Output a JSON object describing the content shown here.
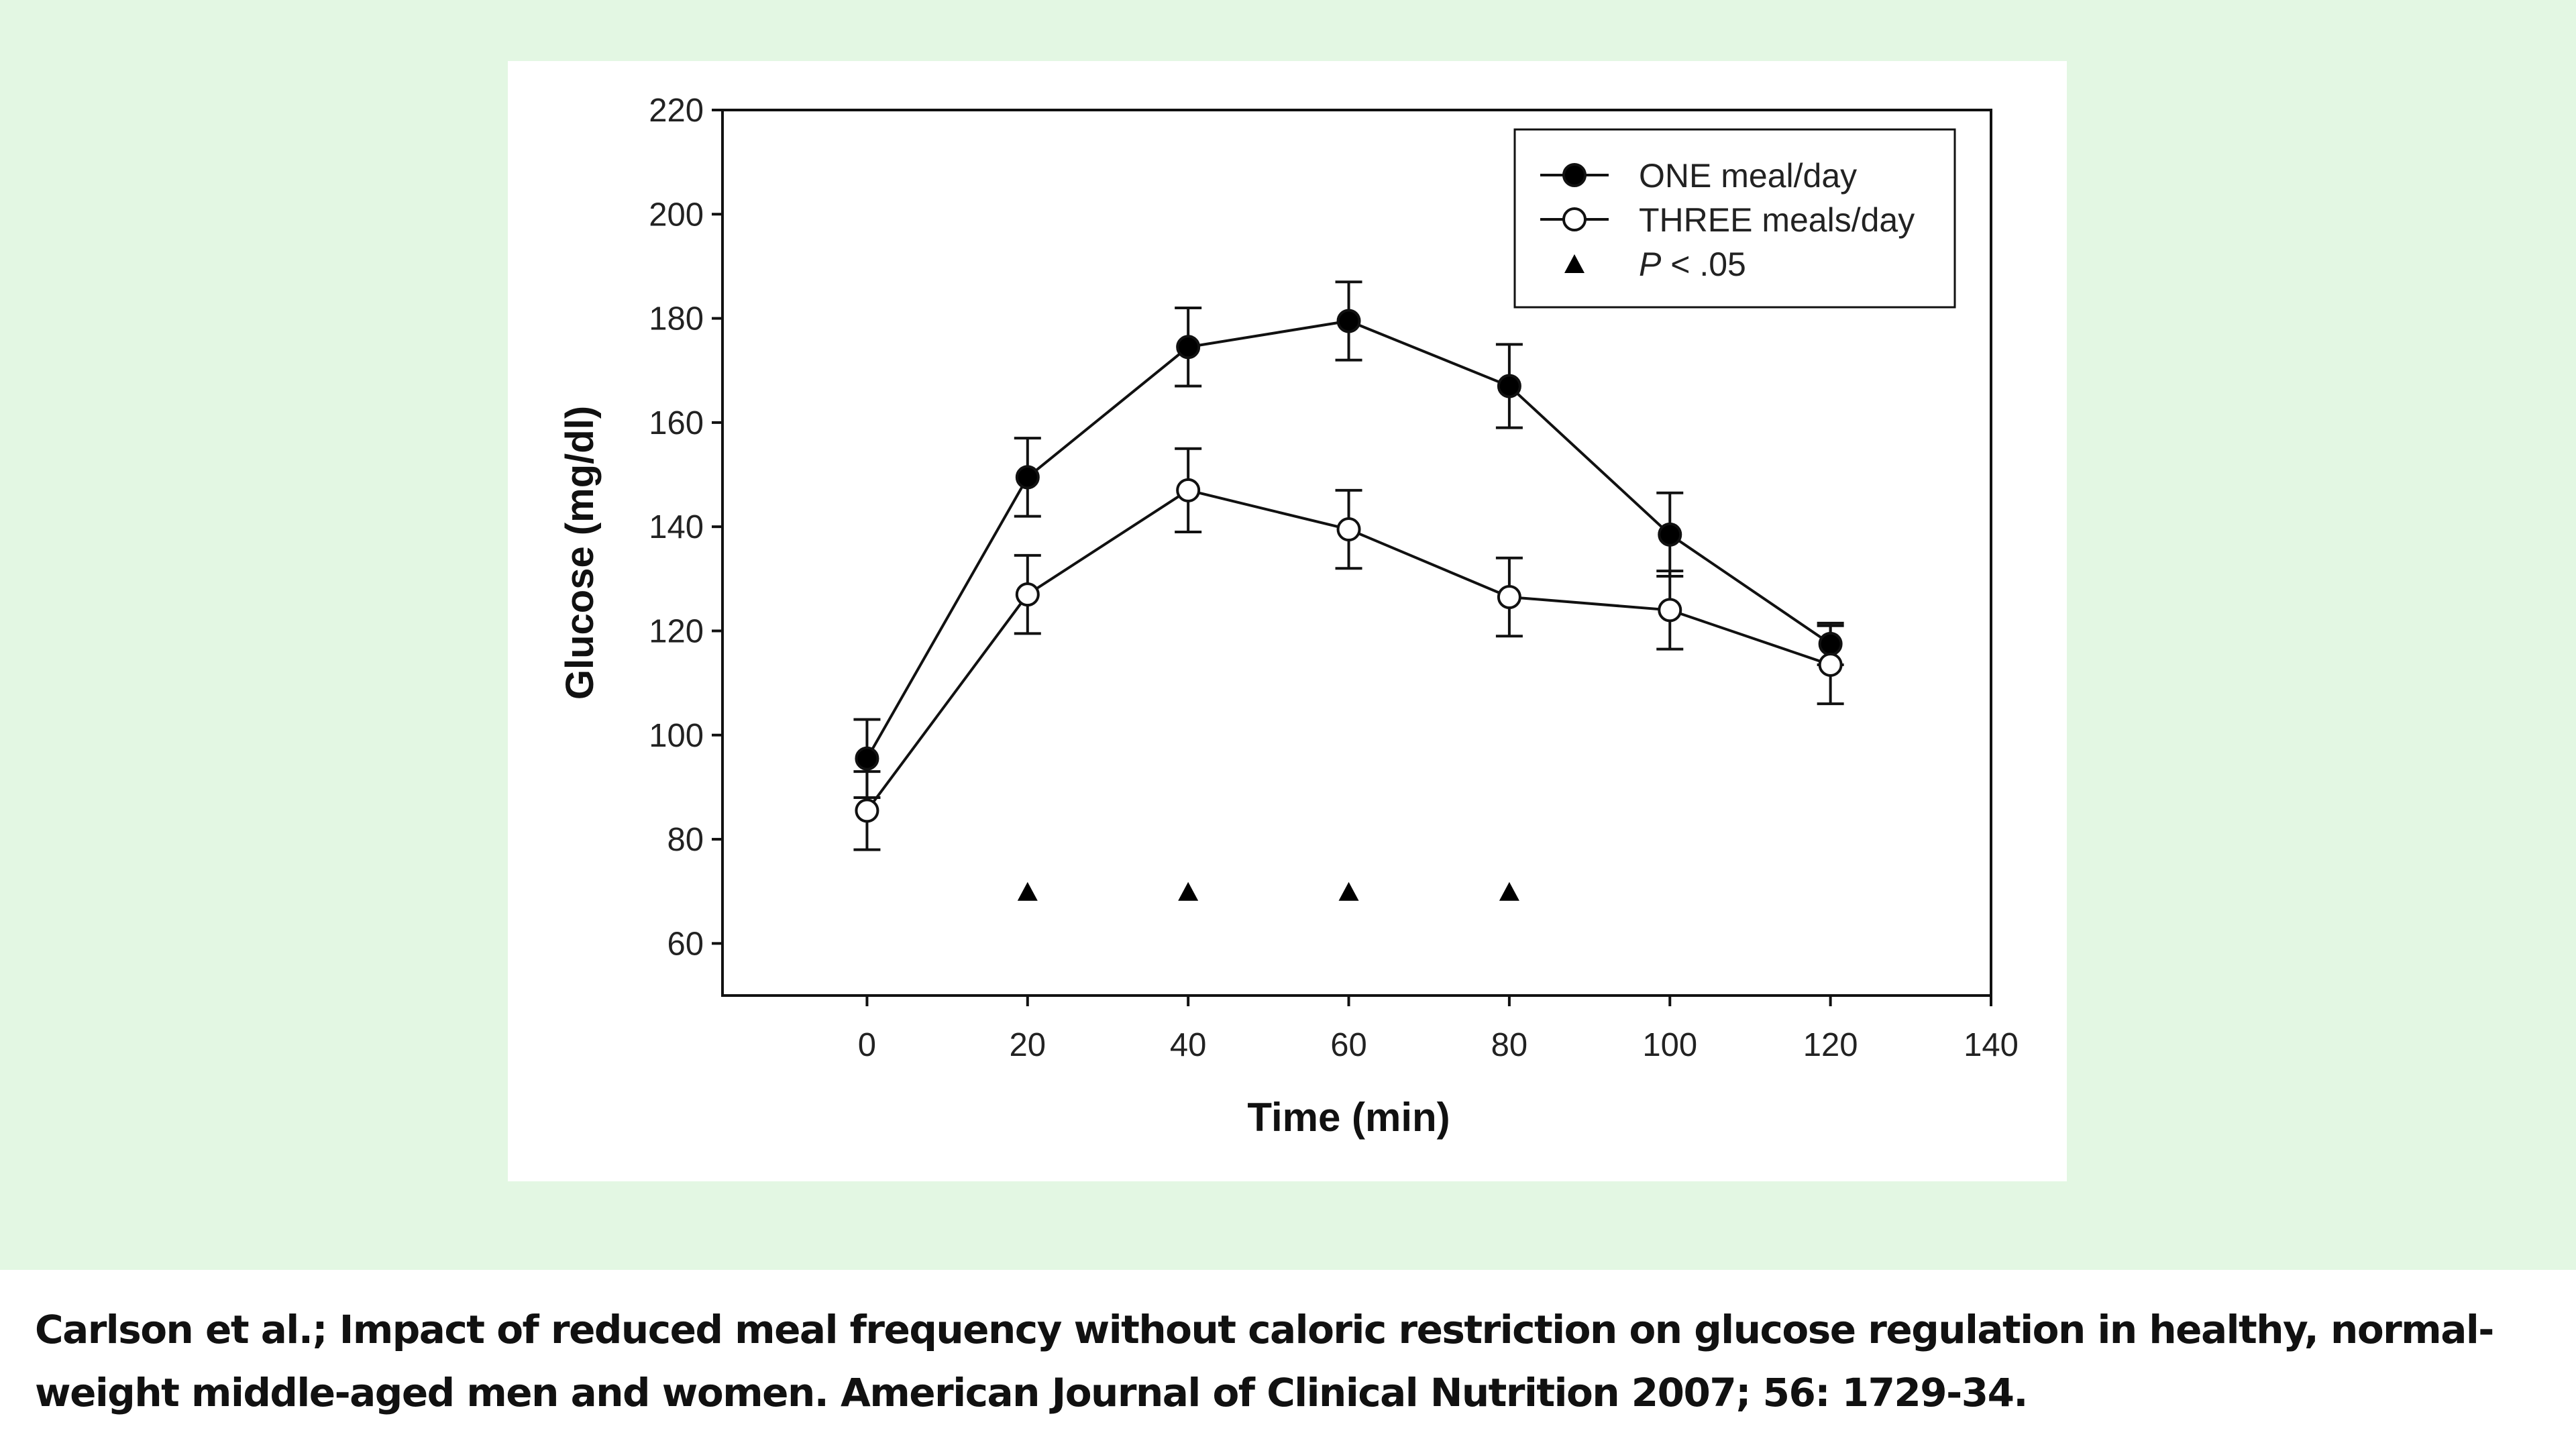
{
  "chart_data": {
    "type": "line",
    "xlabel": "Time (min)",
    "ylabel": "Glucose (mg/dl)",
    "xlim": [
      -18,
      140
    ],
    "ylim": [
      50,
      220
    ],
    "xticks": [
      0,
      20,
      40,
      60,
      80,
      100,
      120,
      140
    ],
    "yticks": [
      60,
      80,
      100,
      120,
      140,
      160,
      180,
      200,
      220
    ],
    "grid": false,
    "legend_position": "top-right",
    "x": [
      0,
      20,
      40,
      60,
      80,
      100,
      120
    ],
    "series": [
      {
        "name": "ONE meal/day",
        "marker": "filled-circle",
        "values": [
          95.5,
          149.5,
          174.5,
          179.5,
          167,
          138.5,
          117.5
        ],
        "errors": [
          7.5,
          7.5,
          7.5,
          7.5,
          8,
          8,
          4
        ]
      },
      {
        "name": "THREE meals/day",
        "marker": "open-circle",
        "values": [
          85.5,
          127,
          147,
          139.5,
          126.5,
          124,
          113.5
        ],
        "errors": [
          7.5,
          7.5,
          8,
          7.5,
          7.5,
          7.5,
          7.5
        ]
      }
    ],
    "significance": {
      "label_prefix": "P",
      "label_suffix": " < .05",
      "marker": "triangle",
      "x": [
        20,
        40,
        60,
        80
      ],
      "y": 70
    }
  },
  "caption": "Carlson et al.; Impact of reduced meal frequency without caloric restriction on glucose regulation in healthy, normal-weight middle-aged men and women. American Journal of Clinical Nutrition 2007; 56: 1729-34."
}
